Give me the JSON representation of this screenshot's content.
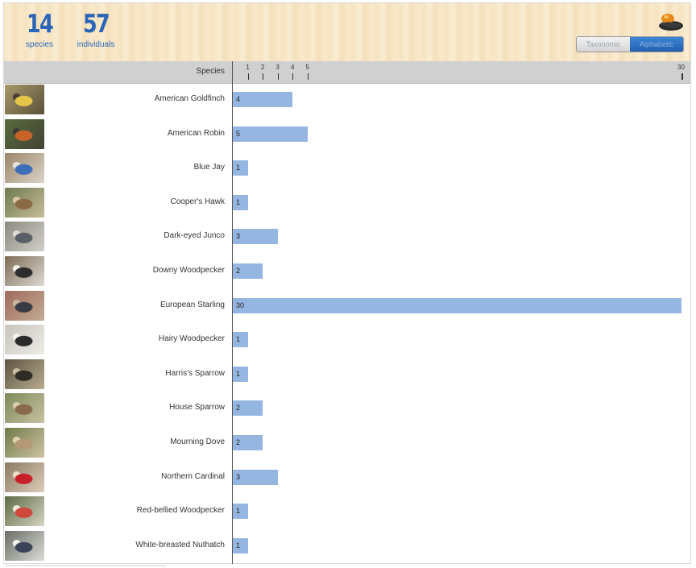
{
  "stats": {
    "species_count": "14",
    "species_label": "species",
    "individuals_count": "57",
    "individuals_label": "individuals"
  },
  "toggle": {
    "options": [
      "Taxonomic",
      "Alphabetic"
    ],
    "selected": "Alphabetic"
  },
  "colors": {
    "accent": "#2a66b8",
    "bar": "#96b6e2",
    "header_bg": "#f7e6c4",
    "column_header_bg": "#d0d0d0"
  },
  "chart_data": {
    "type": "bar",
    "orientation": "horizontal",
    "category_header": "Species",
    "categories": [
      "American Goldfinch",
      "American Robin",
      "Blue Jay",
      "Cooper's Hawk",
      "Dark-eyed Junco",
      "Downy Woodpecker",
      "European Starling",
      "Hairy Woodpecker",
      "Harris's Sparrow",
      "House Sparrow",
      "Mourning Dove",
      "Northern Cardinal",
      "Red-bellied Woodpecker",
      "White-breasted Nuthatch"
    ],
    "values": [
      4,
      5,
      1,
      1,
      3,
      2,
      30,
      1,
      1,
      2,
      2,
      3,
      1,
      1
    ],
    "xticks": [
      1,
      2,
      3,
      4,
      5,
      30
    ],
    "xlim": [
      0,
      30
    ],
    "grid": false,
    "legend": "none",
    "thumbnails": [
      "american-goldfinch-photo",
      "american-robin-photo",
      "blue-jay-photo",
      "coopers-hawk-photo",
      "dark-eyed-junco-photo",
      "downy-woodpecker-photo",
      "european-starling-photo",
      "hairy-woodpecker-photo",
      "harriss-sparrow-photo",
      "house-sparrow-photo",
      "mourning-dove-photo",
      "northern-cardinal-photo",
      "red-bellied-woodpecker-photo",
      "white-breasted-nuthatch-photo"
    ]
  }
}
